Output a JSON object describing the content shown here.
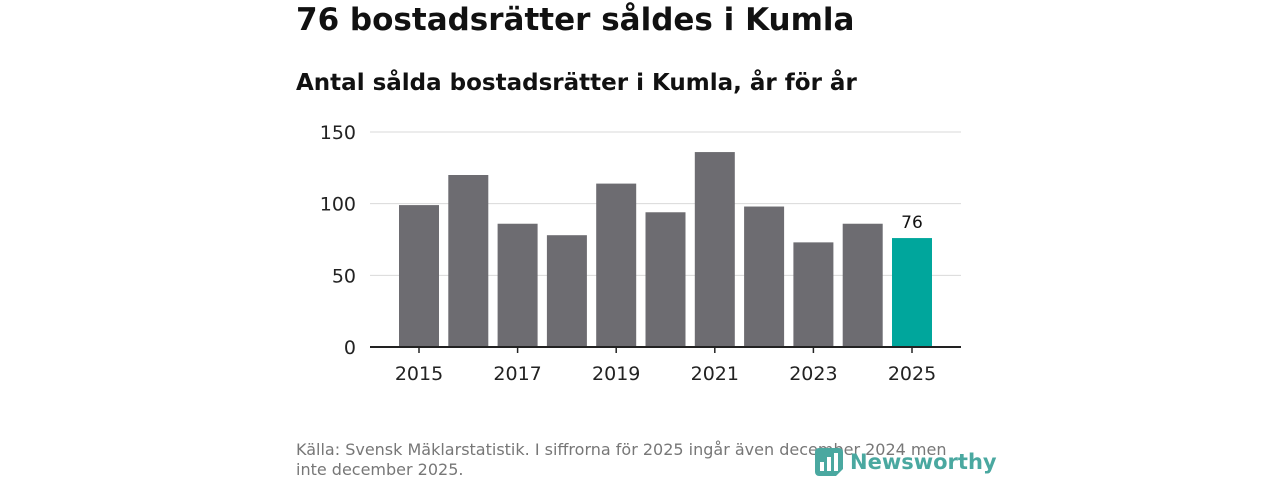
{
  "title": "76 bostadsrätter såldes i Kumla",
  "subtitle": "Antal sålda bostadsrätter i Kumla, år för år",
  "source": "Källa: Svensk Mäklarstatistik. I siffrorna för 2025 ingår även december 2024 men inte december 2025.",
  "brand": {
    "name": "Newsworthy",
    "icon": "newsworthy-logo-icon",
    "color": "#4aa8a0"
  },
  "colors": {
    "bar": "#6d6c71",
    "highlight": "#00a69c",
    "grid": "#d9d9d9",
    "axis": "#222222"
  },
  "chart_data": {
    "type": "bar",
    "categories": [
      "2015",
      "2016",
      "2017",
      "2018",
      "2019",
      "2020",
      "2021",
      "2022",
      "2023",
      "2024",
      "2025"
    ],
    "values": [
      99,
      120,
      86,
      78,
      114,
      94,
      136,
      98,
      73,
      86,
      76
    ],
    "highlight_index": 10,
    "data_labels": {
      "2025": "76"
    },
    "x_tick_labels": [
      "2015",
      "2017",
      "2019",
      "2021",
      "2023",
      "2025"
    ],
    "y_ticks": [
      0,
      50,
      100,
      150
    ],
    "ylim": [
      0,
      150
    ],
    "xlabel": "",
    "ylabel": "",
    "grid": true,
    "legend": "none"
  }
}
